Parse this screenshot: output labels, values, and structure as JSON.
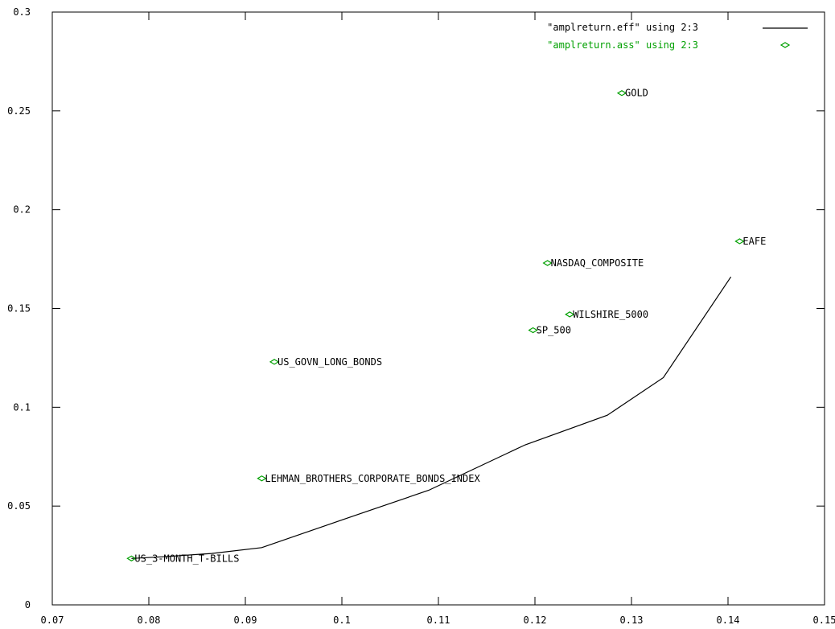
{
  "chart_data": {
    "type": "line",
    "title": "",
    "xlabel": "",
    "ylabel": "",
    "xlim": [
      0.07,
      0.15
    ],
    "ylim": [
      0,
      0.3
    ],
    "x_ticks": [
      0.07,
      0.08,
      0.09,
      0.1,
      0.11,
      0.12,
      0.13,
      0.14,
      0.15
    ],
    "x_tick_labels": [
      "0.07",
      "0.08",
      "0.09",
      "0.1",
      "0.11",
      "0.12",
      "0.13",
      "0.14",
      "0.15"
    ],
    "y_ticks": [
      0,
      0.05,
      0.1,
      0.15,
      0.2,
      0.25,
      0.3
    ],
    "y_tick_labels": [
      "0",
      "0.05",
      "0.1",
      "0.15",
      "0.2",
      "0.25",
      "0.3"
    ],
    "grid": false,
    "legend_position": "top-right",
    "colors": {
      "frontier": "#000000",
      "assets": "#00a000"
    },
    "series": [
      {
        "name": "\"amplreturn.eff\" using 2:3",
        "style": "line",
        "color": "#000000",
        "points": [
          {
            "x": 0.0782,
            "y": 0.0235
          },
          {
            "x": 0.082,
            "y": 0.0245
          },
          {
            "x": 0.0865,
            "y": 0.026
          },
          {
            "x": 0.0917,
            "y": 0.029
          },
          {
            "x": 0.1,
            "y": 0.043
          },
          {
            "x": 0.109,
            "y": 0.058
          },
          {
            "x": 0.119,
            "y": 0.081
          },
          {
            "x": 0.1275,
            "y": 0.096
          },
          {
            "x": 0.1333,
            "y": 0.115
          },
          {
            "x": 0.1403,
            "y": 0.166
          }
        ]
      },
      {
        "name": "\"amplreturn.ass\" using 2:3",
        "style": "points",
        "color": "#00a000",
        "points": [
          {
            "x": 0.0782,
            "y": 0.0235,
            "label": "US_3-MONTH_T-BILLS"
          },
          {
            "x": 0.0917,
            "y": 0.064,
            "label": "LEHMAN_BROTHERS_CORPORATE_BONDS_INDEX"
          },
          {
            "x": 0.093,
            "y": 0.123,
            "label": "US_GOVN_LONG_BONDS"
          },
          {
            "x": 0.1198,
            "y": 0.139,
            "label": "SP_500"
          },
          {
            "x": 0.1236,
            "y": 0.147,
            "label": "WILSHIRE_5000"
          },
          {
            "x": 0.1213,
            "y": 0.173,
            "label": "NASDAQ_COMPOSITE"
          },
          {
            "x": 0.1412,
            "y": 0.184,
            "label": "EAFE"
          },
          {
            "x": 0.129,
            "y": 0.259,
            "label": "GOLD"
          }
        ]
      }
    ]
  }
}
